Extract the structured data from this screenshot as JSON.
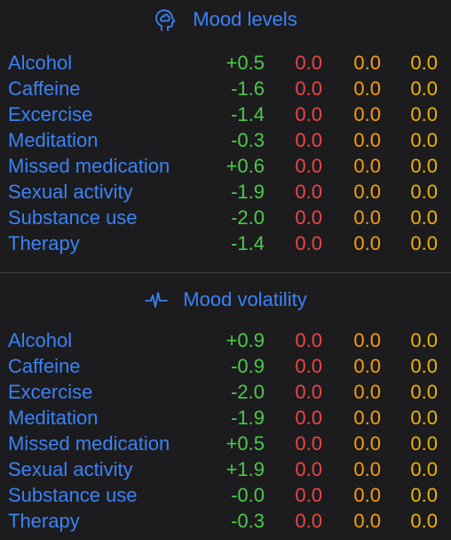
{
  "sections": [
    {
      "title": "Mood levels",
      "icon": "brain-head-icon",
      "rows": [
        {
          "label": "Alcohol",
          "values": [
            "+0.5",
            "0.0",
            "0.0",
            "0.0"
          ]
        },
        {
          "label": "Caffeine",
          "values": [
            "-1.6",
            "0.0",
            "0.0",
            "0.0"
          ]
        },
        {
          "label": "Excercise",
          "values": [
            "-1.4",
            "0.0",
            "0.0",
            "0.0"
          ]
        },
        {
          "label": "Meditation",
          "values": [
            "-0.3",
            "0.0",
            "0.0",
            "0.0"
          ]
        },
        {
          "label": "Missed medication",
          "values": [
            "+0.6",
            "0.0",
            "0.0",
            "0.0"
          ]
        },
        {
          "label": "Sexual activity",
          "values": [
            "-1.9",
            "0.0",
            "0.0",
            "0.0"
          ]
        },
        {
          "label": "Substance use",
          "values": [
            "-2.0",
            "0.0",
            "0.0",
            "0.0"
          ]
        },
        {
          "label": "Therapy",
          "values": [
            "-1.4",
            "0.0",
            "0.0",
            "0.0"
          ]
        }
      ]
    },
    {
      "title": "Mood volatility",
      "icon": "pulse-waveform-icon",
      "rows": [
        {
          "label": "Alcohol",
          "values": [
            "+0.9",
            "0.0",
            "0.0",
            "0.0"
          ]
        },
        {
          "label": "Caffeine",
          "values": [
            "-0.9",
            "0.0",
            "0.0",
            "0.0"
          ]
        },
        {
          "label": "Excercise",
          "values": [
            "-2.0",
            "0.0",
            "0.0",
            "0.0"
          ]
        },
        {
          "label": "Meditation",
          "values": [
            "-1.9",
            "0.0",
            "0.0",
            "0.0"
          ]
        },
        {
          "label": "Missed medication",
          "values": [
            "+0.5",
            "0.0",
            "0.0",
            "0.0"
          ]
        },
        {
          "label": "Sexual activity",
          "values": [
            "+1.9",
            "0.0",
            "0.0",
            "0.0"
          ]
        },
        {
          "label": "Substance use",
          "values": [
            "-0.0",
            "0.0",
            "0.0",
            "0.0"
          ]
        },
        {
          "label": "Therapy",
          "values": [
            "-0.3",
            "0.0",
            "0.0",
            "0.0"
          ]
        }
      ]
    }
  ],
  "colors": {
    "background": "#1c1c1e",
    "label": "#3b82f6",
    "value_green": "#4cc94c",
    "value_red": "#ef4444",
    "value_orange": "#f59e0b",
    "value_yellow": "#eab308",
    "divider": "#3a3a3c"
  }
}
